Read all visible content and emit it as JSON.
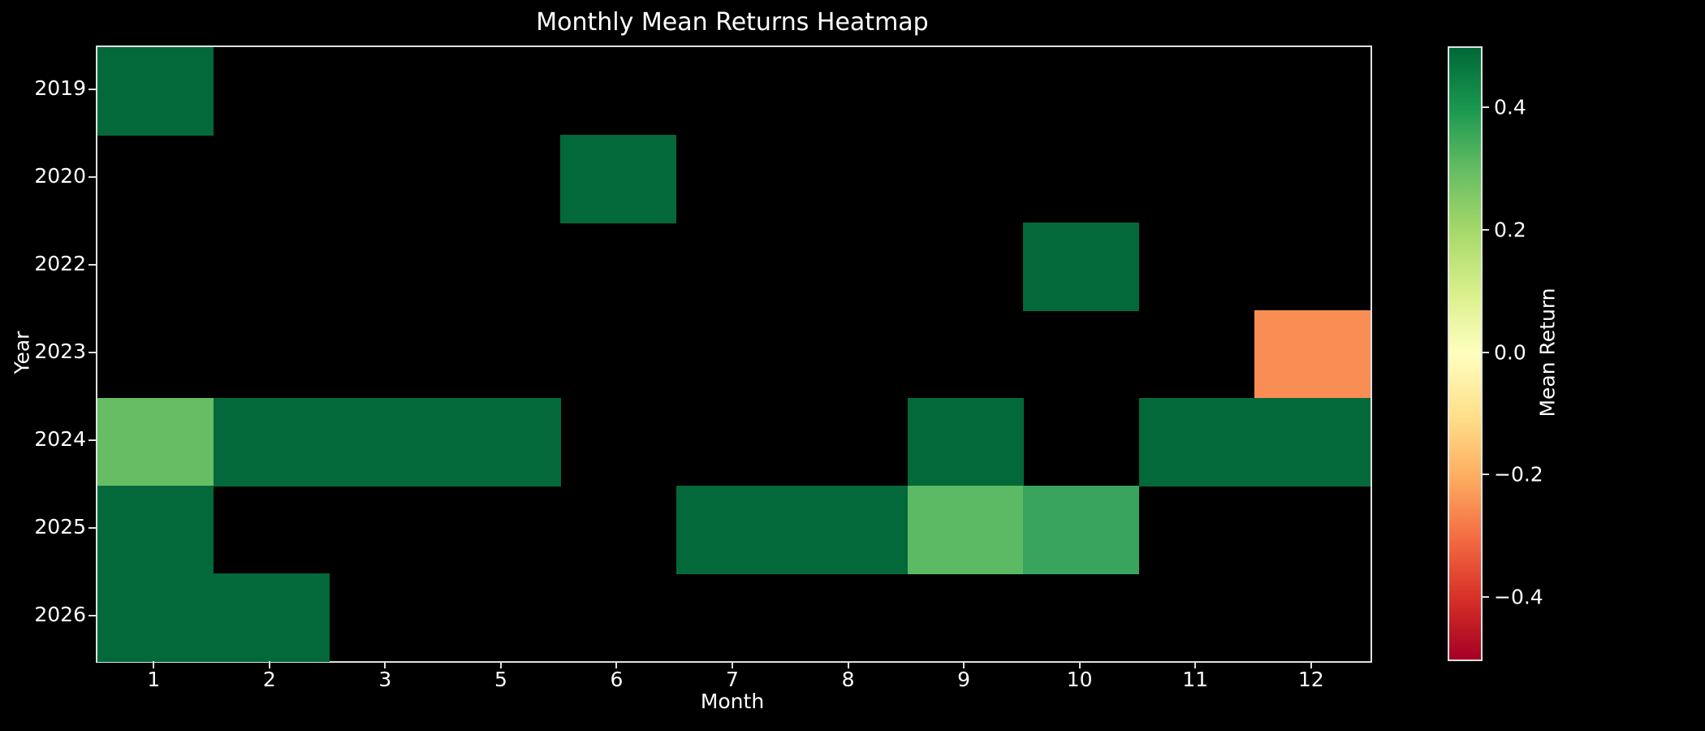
{
  "figure": {
    "background_color": "#000000",
    "text_color": "#ffffff",
    "spine_color": "#e0e0e0"
  },
  "chart_data": {
    "type": "heatmap",
    "title": "Monthly Mean Returns Heatmap",
    "xlabel": "Month",
    "ylabel": "Year",
    "x_categories": [
      1,
      2,
      3,
      5,
      6,
      7,
      8,
      9,
      10,
      11,
      12
    ],
    "y_categories": [
      2019,
      2020,
      2022,
      2023,
      2024,
      2025,
      2026
    ],
    "missing_cell_color": "#000000",
    "grid": false,
    "cells": [
      {
        "year": 2019,
        "month": 1,
        "value": 0.46,
        "color": "#03693A"
      },
      {
        "year": 2020,
        "month": 6,
        "value": 0.46,
        "color": "#03693A"
      },
      {
        "year": 2022,
        "month": 10,
        "value": 0.46,
        "color": "#03693A"
      },
      {
        "year": 2023,
        "month": 12,
        "value": -0.24,
        "color": "#F88E54"
      },
      {
        "year": 2024,
        "month": 1,
        "value": 0.3,
        "color": "#66BD63"
      },
      {
        "year": 2024,
        "month": 2,
        "value": 0.46,
        "color": "#03693A"
      },
      {
        "year": 2024,
        "month": 3,
        "value": 0.46,
        "color": "#03693A"
      },
      {
        "year": 2024,
        "month": 5,
        "value": 0.46,
        "color": "#03693A"
      },
      {
        "year": 2024,
        "month": 9,
        "value": 0.46,
        "color": "#03693A"
      },
      {
        "year": 2024,
        "month": 11,
        "value": 0.46,
        "color": "#03693A"
      },
      {
        "year": 2024,
        "month": 12,
        "value": 0.46,
        "color": "#03693A"
      },
      {
        "year": 2025,
        "month": 1,
        "value": 0.46,
        "color": "#03693A"
      },
      {
        "year": 2025,
        "month": 7,
        "value": 0.46,
        "color": "#03693A"
      },
      {
        "year": 2025,
        "month": 8,
        "value": 0.46,
        "color": "#03693A"
      },
      {
        "year": 2025,
        "month": 9,
        "value": 0.31,
        "color": "#5CB964"
      },
      {
        "year": 2025,
        "month": 10,
        "value": 0.36,
        "color": "#39A45E"
      },
      {
        "year": 2026,
        "month": 1,
        "value": 0.46,
        "color": "#03693A"
      },
      {
        "year": 2026,
        "month": 2,
        "value": 0.46,
        "color": "#03693A"
      }
    ],
    "colorbar": {
      "label": "Mean Return",
      "vmin": -0.5,
      "vmax": 0.5,
      "tick_values": [
        0.4,
        0.2,
        0.0,
        -0.2,
        -0.4
      ],
      "tick_labels": [
        "0.4",
        "0.2",
        "0.0",
        "−0.2",
        "−0.4"
      ],
      "colormap": "RdYlGn",
      "gradient_top_to_bottom": [
        "#006837",
        "#1a9850",
        "#66bd63",
        "#a6d96a",
        "#d9ef8b",
        "#ffffbf",
        "#fee08b",
        "#fdae61",
        "#f46d43",
        "#d73027",
        "#a50026"
      ]
    }
  }
}
